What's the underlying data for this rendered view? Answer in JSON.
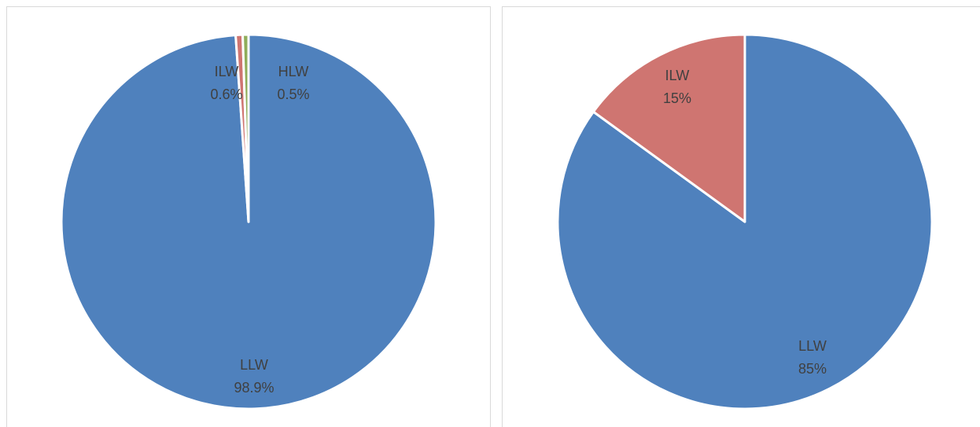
{
  "chart_data": [
    {
      "type": "pie",
      "categories": [
        "LLW",
        "ILW",
        "HLW"
      ],
      "values": [
        98.9,
        0.6,
        0.5
      ],
      "value_labels": [
        "98.9%",
        "0.6%",
        "0.5%"
      ],
      "colors": [
        "#4f81bd",
        "#cf7571",
        "#8fad5a"
      ]
    },
    {
      "type": "pie",
      "categories": [
        "LLW",
        "ILW"
      ],
      "values": [
        85,
        15
      ],
      "value_labels": [
        "85%",
        "15%"
      ],
      "colors": [
        "#4f81bd",
        "#cf7571"
      ]
    }
  ]
}
